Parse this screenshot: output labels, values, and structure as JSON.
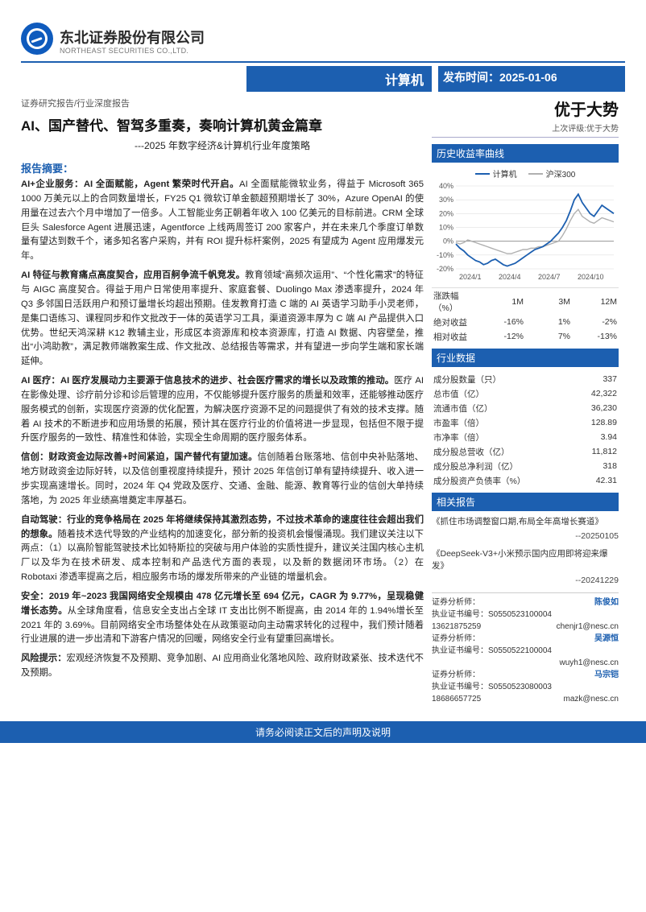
{
  "logo": {
    "company_cn": "东北证券股份有限公司",
    "company_en": "NORTHEAST SECURITIES CO.,LTD."
  },
  "header": {
    "sector": "计算机",
    "pub_label": "发布时间：",
    "pub_date": "2025-01-06"
  },
  "breadcrumb": "证券研究报告/行业深度报告",
  "title": "AI、国产替代、智驾多重奏，奏响计算机黄金篇章",
  "subtitle": "---2025 年数字经济&计算机行业年度策略",
  "summary_hdr": "报告摘要：",
  "paragraphs": [
    {
      "lead": "AI+企业服务：AI 全面赋能，Agent 繁荣时代开启。",
      "text": "AI 全面赋能微软业务，得益于 Microsoft 365 1000 万美元以上的合同数量增长，FY25 Q1 微软订单金额超预期增长了 30%，Azure OpenAI 的使用量在过去六个月中增加了一倍多。人工智能业务正朝着年收入 100 亿美元的目标前进。CRM 全球巨头 Salesforce Agent 进展迅速，Agentforce 上线两周签订 200 家客户，并在未来几个季度订单数量有望达到数千个，诸多知名客户采购，并有 ROI 提升标杆案例，2025 有望成为 Agent 应用爆发元年。"
    },
    {
      "lead": "AI 特征与教育痛点高度契合，应用百舸争流千帆竞发。",
      "text": "教育领域“高频次运用”、“个性化需求”的特征与 AIGC 高度契合。得益于用户日常使用率提升、家庭套餐、Duolingo Max 渗透率提升，2024 年 Q3 多邻国日活跃用户和预订量增长均超出预期。佳发教育打造 C 端的 AI 英语学习助手小灵老师，是集口语练习、课程同步和作文批改于一体的英语学习工具，渠道资源丰厚为 C 端 AI 产品提供入口优势。世纪天鸿深耕 K12 教辅主业，形成区本资源库和校本资源库，打造 AI 数据、内容壁垒，推出“小鸿助教”，满足教师端教案生成、作文批改、总结报告等需求，并有望进一步向学生端和家长端延伸。"
    },
    {
      "lead": "AI 医疗：AI 医疗发展动力主要源于信息技术的进步、社会医疗需求的增长以及政策的推动。",
      "text": "医疗 AI 在影像处理、诊疗前分诊和诊后管理的应用，不仅能够提升医疗服务的质量和效率，还能够推动医疗服务模式的创新，实现医疗资源的优化配置，为解决医疗资源不足的问题提供了有效的技术支撑。随着 AI 技术的不断进步和应用场景的拓展，预计其在医疗行业的价值将进一步显现，包括但不限于提升医疗服务的一致性、精准性和体验，实现全生命周期的医疗服务体系。"
    },
    {
      "lead": "信创：财政资金边际改善+时间紧迫，国产替代有望加速。",
      "text": "信创随着台账落地、信创中央补贴落地、地方财政资金边际好转，以及信创重视度持续提升，预计 2025 年信创订单有望持续提升、收入进一步实现高速增长。同时，2024 年 Q4 党政及医疗、交通、金融、能源、教育等行业的信创大单持续落地，为 2025 年业绩高增奠定丰厚基石。"
    },
    {
      "lead": "自动驾驶：行业的竞争格局在 2025 年将继续保持其激烈态势，不过技术革命的速度往往会超出我们的想象。",
      "text": "随着技术迭代导致的产业结构的加速变化，部分新的投资机会慢慢涌现。我们建议关注以下两点：（1）以高阶智能驾驶技术比如特斯拉的突破与用户体验的实质性提升，建议关注国内核心主机厂以及华为在技术研发、成本控制和产品迭代方面的表现，以及新的数据闭环市场。（2）在 Robotaxi 渗透率提高之后，相应服务市场的爆发所带来的产业链的增量机会。"
    },
    {
      "lead": "安全：2019 年~2023 我国网络安全规模由 478 亿元增长至 694 亿元，CAGR 为 9.77%，呈现稳健增长态势。",
      "text": "从全球角度看，信息安全支出占全球 IT 支出比例不断提高，由 2014 年的 1.94%增长至 2021 年的 3.69%。目前网络安全市场整体处在从政策驱动向主动需求转化的过程中，我们预计随着行业进展的进一步出清和下游客户情况的回暖，网络安全行业有望重回高增长。"
    },
    {
      "lead": "风险提示：",
      "text": "宏观经济恢复不及预期、竞争加剧、AI 应用商业化落地风险、政府财政紧张、技术迭代不及预期。"
    }
  ],
  "rating": {
    "main": "优于大势",
    "sub": "上次评级:优于大势"
  },
  "chart": {
    "hdr": "历史收益率曲线",
    "legend": [
      {
        "label": "计算机",
        "color": "#1c5fb0"
      },
      {
        "label": "沪深300",
        "color": "#b0b0b0"
      }
    ],
    "y_ticks": [
      "40%",
      "30%",
      "20%",
      "10%",
      "0%",
      "-10%",
      "-20%"
    ],
    "y_min": -20,
    "y_max": 40,
    "y_step": 10,
    "x_labels": [
      "2024/1",
      "2024/4",
      "2024/7",
      "2024/10"
    ],
    "series": {
      "computer": [
        -2,
        -5,
        -7,
        -10,
        -12,
        -14,
        -15,
        -17,
        -16,
        -14,
        -13,
        -15,
        -17,
        -18,
        -17,
        -16,
        -14,
        -12,
        -10,
        -8,
        -6,
        -5,
        -4,
        -2,
        0,
        3,
        6,
        10,
        15,
        22,
        30,
        34,
        28,
        24,
        20,
        18,
        22,
        26,
        24,
        22,
        20
      ],
      "csi300": [
        -1,
        -2,
        -1,
        1,
        0,
        -1,
        -2,
        -3,
        -4,
        -5,
        -6,
        -7,
        -8,
        -9,
        -9,
        -8,
        -7,
        -6,
        -6,
        -5,
        -5,
        -4,
        -4,
        -3,
        -2,
        -1,
        0,
        4,
        9,
        15,
        20,
        23,
        18,
        16,
        14,
        13,
        15,
        17,
        16,
        15,
        14
      ]
    },
    "grid_color": "#d9d9d9",
    "bg": "#ffffff",
    "axis_fontsize": 9
  },
  "perf_table": {
    "cols": [
      "涨跌幅（%）",
      "1M",
      "3M",
      "12M"
    ],
    "rows": [
      [
        "绝对收益",
        "-16%",
        "1%",
        "-2%"
      ],
      [
        "相对收益",
        "-12%",
        "7%",
        "-13%"
      ]
    ]
  },
  "industry_hdr": "行业数据",
  "industry_rows": [
    [
      "成分股数量（只）",
      "337"
    ],
    [
      "总市值（亿）",
      "42,322"
    ],
    [
      "流通市值（亿）",
      "36,230"
    ],
    [
      "市盈率（倍）",
      "128.89"
    ],
    [
      "市净率（倍）",
      "3.94"
    ],
    [
      "成分股总营收（亿）",
      "11,812"
    ],
    [
      "成分股总净利润（亿）",
      "318"
    ],
    [
      "成分股资产负债率（%）",
      "42.31"
    ]
  ],
  "related_hdr": "相关报告",
  "related_reports": [
    {
      "t": "《抓住市场调整窗口期,布局全年高增长赛道》",
      "d": "--20250105"
    },
    {
      "t": "《DeepSeek-V3+小米预示国内应用即将迎来爆发》",
      "d": "--20241229"
    }
  ],
  "analysts": [
    {
      "role": "证券分析师：",
      "name": "陈俊如",
      "lic": "执业证书编号：S0550523100004",
      "phone": "13621875259",
      "email": "chenjr1@nesc.cn"
    },
    {
      "role": "证券分析师：",
      "name": "吴源恒",
      "lic": "执业证书编号：S0550522100004",
      "phone": "",
      "email": "wuyh1@nesc.cn"
    },
    {
      "role": "证券分析师：",
      "name": "马宗铠",
      "lic": "执业证书编号：S0550523080003",
      "phone": "18686657725",
      "email": "mazk@nesc.cn"
    }
  ],
  "footer": "请务必阅读正文后的声明及说明"
}
